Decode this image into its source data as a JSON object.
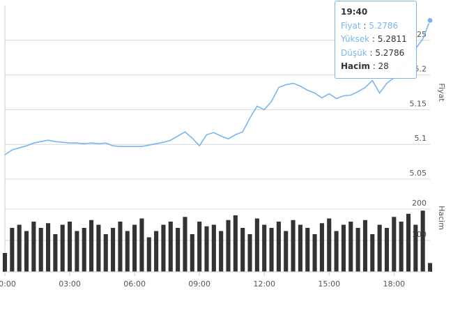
{
  "chart_data": [
    {
      "type": "line",
      "axis_title": "Fiyat",
      "color": "#7cb5ec",
      "x": [
        0,
        20,
        40,
        60,
        80,
        100,
        120,
        140,
        160,
        180,
        200,
        220,
        240,
        260,
        280,
        300,
        320,
        340,
        360,
        380,
        400,
        420,
        440,
        460,
        480,
        500,
        520,
        540,
        560,
        580,
        600,
        620,
        640,
        660,
        680,
        700,
        720,
        740,
        760,
        780,
        800,
        820,
        840,
        860,
        880,
        900,
        920,
        940,
        960,
        980,
        1000,
        1020,
        1040,
        1060,
        1080,
        1100,
        1120,
        1140,
        1160,
        1180
      ],
      "series": [
        {
          "name": "Fiyat",
          "color": "#7cb5ec",
          "values": [
            5.085,
            5.092,
            5.095,
            5.098,
            5.102,
            5.104,
            5.106,
            5.104,
            5.103,
            5.102,
            5.102,
            5.101,
            5.102,
            5.101,
            5.102,
            5.098,
            5.097,
            5.097,
            5.097,
            5.097,
            5.099,
            5.101,
            5.103,
            5.106,
            5.112,
            5.118,
            5.109,
            5.098,
            5.114,
            5.117,
            5.112,
            5.108,
            5.114,
            5.118,
            5.138,
            5.155,
            5.15,
            5.162,
            5.182,
            5.186,
            5.188,
            5.184,
            5.178,
            5.174,
            5.167,
            5.173,
            5.166,
            5.17,
            5.171,
            5.176,
            5.182,
            5.192,
            5.174,
            5.188,
            5.196,
            5.208,
            5.222,
            5.238,
            5.252,
            5.2786
          ]
        }
      ],
      "xlim": [
        0,
        1180
      ],
      "ylim": [
        5.05,
        5.3
      ],
      "yticks": [
        5.05,
        5.1,
        5.15,
        5.2,
        5.25
      ],
      "grid": true
    },
    {
      "type": "bar",
      "axis_title": "Hacim",
      "color": "#333333",
      "x": [
        0,
        20,
        40,
        60,
        80,
        100,
        120,
        140,
        160,
        180,
        200,
        220,
        240,
        260,
        280,
        300,
        320,
        340,
        360,
        380,
        400,
        420,
        440,
        460,
        480,
        500,
        520,
        540,
        560,
        580,
        600,
        620,
        640,
        660,
        680,
        700,
        720,
        740,
        760,
        780,
        800,
        820,
        840,
        860,
        880,
        900,
        920,
        940,
        960,
        980,
        1000,
        1020,
        1040,
        1060,
        1080,
        1100,
        1120,
        1140,
        1160,
        1180
      ],
      "series": [
        {
          "name": "Hacim",
          "color": "#333333",
          "values": [
            60,
            140,
            150,
            130,
            160,
            140,
            155,
            120,
            150,
            160,
            130,
            140,
            165,
            150,
            120,
            140,
            160,
            130,
            150,
            170,
            110,
            130,
            150,
            160,
            140,
            175,
            120,
            160,
            145,
            150,
            130,
            165,
            180,
            140,
            120,
            170,
            150,
            140,
            160,
            130,
            165,
            150,
            140,
            120,
            155,
            170,
            130,
            150,
            160,
            140,
            165,
            120,
            150,
            140,
            175,
            160,
            185,
            150,
            195,
            28
          ]
        }
      ],
      "xlim": [
        0,
        1180
      ],
      "ylim": [
        0,
        300
      ],
      "yticks": [
        100,
        200
      ],
      "grid": true,
      "xticks": [
        {
          "value": 0,
          "label": "00:00"
        },
        {
          "value": 180,
          "label": "03:00"
        },
        {
          "value": 360,
          "label": "06:00"
        },
        {
          "value": 540,
          "label": "09:00"
        },
        {
          "value": 720,
          "label": "12:00"
        },
        {
          "value": 900,
          "label": "15:00"
        },
        {
          "value": 1080,
          "label": "18:00"
        }
      ]
    }
  ],
  "tooltip": {
    "time": "19:40",
    "price_label": "Fiyat",
    "price": 5.2786,
    "high_label": "Yüksek",
    "high": 5.2811,
    "low_label": "Düşük",
    "low": 5.2786,
    "volume_label": "Hacim",
    "volume": 28
  }
}
